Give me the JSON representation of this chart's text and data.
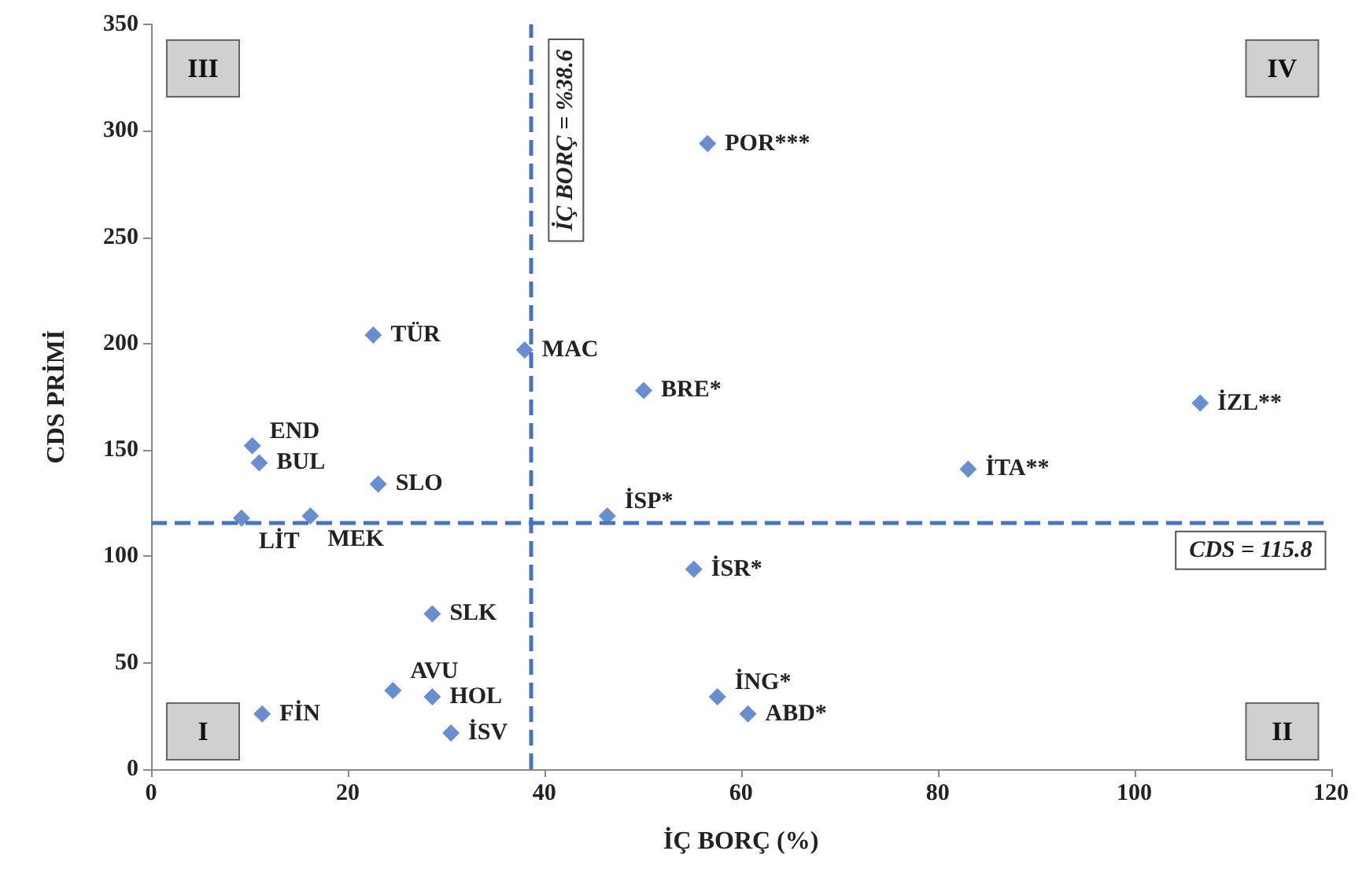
{
  "chart_data": {
    "type": "scatter",
    "xlabel": "İÇ BORÇ (%)",
    "ylabel": "CDS PRİMİ",
    "x": [
      56.6,
      22.6,
      38.0,
      50.1,
      106.7,
      10.3,
      11.0,
      23.1,
      9.2,
      16.2,
      46.4,
      83.1,
      55.2,
      28.6,
      24.6,
      28.6,
      11.3,
      30.5,
      57.6,
      60.7
    ],
    "values": [
      294,
      204,
      197,
      178,
      172,
      152,
      144,
      134,
      118,
      119,
      119,
      141,
      94,
      73,
      37,
      34,
      26,
      17,
      34,
      26
    ],
    "color": "#4472c4",
    "marker": "diamond",
    "grid": false,
    "xlim": [
      0,
      120
    ],
    "xticks": [
      0,
      20,
      40,
      60,
      80,
      100,
      120
    ],
    "ylim": [
      0,
      350
    ],
    "yticks": [
      0,
      50,
      100,
      150,
      200,
      250,
      300,
      350
    ],
    "ref_lines": [
      {
        "axis": "x",
        "value": 38.6,
        "label": "İÇ BORÇ = %38.6",
        "color": "#4472c4",
        "line_style": "dashed"
      },
      {
        "axis": "y",
        "value": 115.8,
        "label": "CDS = 115.8",
        "color": "#4472c4",
        "line_style": "dashed"
      }
    ],
    "annotations": [
      {
        "text": "POR***",
        "x": 56.6,
        "y": 294
      },
      {
        "text": "TÜR",
        "x": 22.6,
        "y": 204
      },
      {
        "text": "MAC",
        "x": 38.0,
        "y": 197
      },
      {
        "text": "BRE*",
        "x": 50.1,
        "y": 178
      },
      {
        "text": "İZL**",
        "x": 106.7,
        "y": 172
      },
      {
        "text": "END",
        "x": 10.3,
        "y": 152
      },
      {
        "text": "BUL",
        "x": 11.0,
        "y": 144
      },
      {
        "text": "SLO",
        "x": 23.1,
        "y": 134
      },
      {
        "text": "LİT",
        "x": 9.2,
        "y": 118
      },
      {
        "text": "MEK",
        "x": 16.2,
        "y": 119
      },
      {
        "text": "İSP*",
        "x": 46.4,
        "y": 119
      },
      {
        "text": "İTA**",
        "x": 83.1,
        "y": 141
      },
      {
        "text": "İSR*",
        "x": 55.2,
        "y": 94
      },
      {
        "text": "SLK",
        "x": 28.6,
        "y": 73
      },
      {
        "text": "AVU",
        "x": 24.6,
        "y": 37
      },
      {
        "text": "HOL",
        "x": 28.6,
        "y": 34
      },
      {
        "text": "FİN",
        "x": 11.3,
        "y": 26
      },
      {
        "text": "İSV",
        "x": 30.5,
        "y": 17
      },
      {
        "text": "İNG*",
        "x": 57.6,
        "y": 34
      },
      {
        "text": "ABD*",
        "x": 60.7,
        "y": 26
      },
      "I",
      "II",
      "III",
      "IV"
    ]
  }
}
